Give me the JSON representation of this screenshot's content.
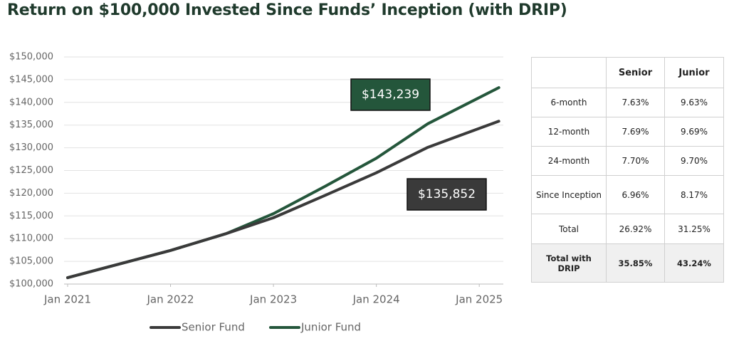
{
  "chart_data": {
    "type": "line",
    "title": "Return on $100,000 Invested Since Funds’ Inception (with DRIP)",
    "x": [
      2021.0,
      2021.5,
      2022.0,
      2022.54,
      2023.0,
      2023.5,
      2024.0,
      2024.5,
      2025.19
    ],
    "series": [
      {
        "name": "Senior Fund",
        "color": "#3a3a3a",
        "values": [
          101400,
          104400,
          107400,
          111100,
          114600,
          119500,
          124500,
          130100,
          135852
        ]
      },
      {
        "name": "Junior Fund",
        "color": "#24563b",
        "values": [
          101400,
          104400,
          107400,
          111100,
          115500,
          121500,
          127700,
          135300,
          143239
        ]
      }
    ],
    "xlim": [
      2021,
      2025.22
    ],
    "xticks": [
      {
        "value": 2021,
        "label": "Jan 2021"
      },
      {
        "value": 2022,
        "label": "Jan 2022"
      },
      {
        "value": 2023,
        "label": "Jan 2023"
      },
      {
        "value": 2024,
        "label": "Jan 2024"
      },
      {
        "value": 2025,
        "label": "Jan 2025"
      }
    ],
    "ylim": [
      100000,
      150000
    ],
    "yticks": [
      {
        "value": 100000,
        "label": "$100,000"
      },
      {
        "value": 105000,
        "label": "$105,000"
      },
      {
        "value": 110000,
        "label": "$110,000"
      },
      {
        "value": 115000,
        "label": "$115,000"
      },
      {
        "value": 120000,
        "label": "$120,000"
      },
      {
        "value": 125000,
        "label": "$125,000"
      },
      {
        "value": 130000,
        "label": "$130,000"
      },
      {
        "value": 135000,
        "label": "$135,000"
      },
      {
        "value": 140000,
        "label": "$140,000"
      },
      {
        "value": 145000,
        "label": "$145,000"
      },
      {
        "value": 150000,
        "label": "$150,000"
      }
    ],
    "grid": true,
    "legend": "bottom",
    "annotations": [
      {
        "text": "$143,239",
        "color": "#24563b"
      },
      {
        "text": "$135,852",
        "color": "#3a3a3a"
      }
    ]
  },
  "table": {
    "columns": [
      "Senior",
      "Junior"
    ],
    "rows": [
      [
        "6-month",
        "7.63%",
        "9.63%"
      ],
      [
        "12-month",
        "7.69%",
        "9.69%"
      ],
      [
        "24-month",
        "7.70%",
        "9.70%"
      ],
      [
        "Since Inception",
        "6.96%",
        "8.17%"
      ],
      [
        "Total",
        "26.92%",
        "31.25%"
      ],
      [
        "Total with DRIP",
        "35.85%",
        "43.24%"
      ]
    ]
  }
}
